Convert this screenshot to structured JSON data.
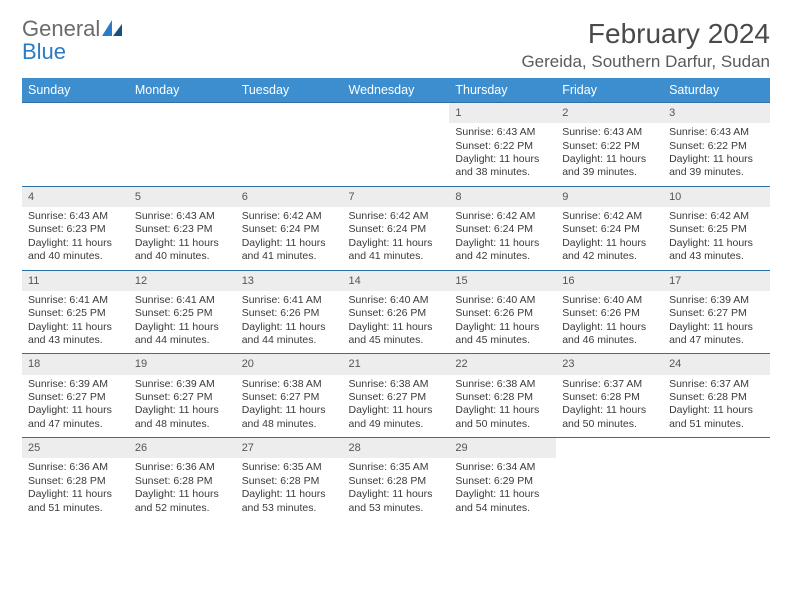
{
  "logo": {
    "general": "General",
    "blue": "Blue"
  },
  "title": "February 2024",
  "location": "Gereida, Southern Darfur, Sudan",
  "dayHeaders": [
    "Sunday",
    "Monday",
    "Tuesday",
    "Wednesday",
    "Thursday",
    "Friday",
    "Saturday"
  ],
  "colors": {
    "headerBg": "#3c8ecf",
    "headerText": "#ffffff",
    "dayNumBg": "#ededed",
    "rowBorder": "#2e6fa8",
    "titleText": "#4a4a4a",
    "bodyText": "#3a3a3a",
    "logoGray": "#6b6b6b",
    "logoBlue": "#2b7cc4"
  },
  "weeks": [
    [
      {
        "empty": true
      },
      {
        "empty": true
      },
      {
        "empty": true
      },
      {
        "empty": true
      },
      {
        "n": "1",
        "sunrise": "Sunrise: 6:43 AM",
        "sunset": "Sunset: 6:22 PM",
        "daylight": "Daylight: 11 hours and 38 minutes."
      },
      {
        "n": "2",
        "sunrise": "Sunrise: 6:43 AM",
        "sunset": "Sunset: 6:22 PM",
        "daylight": "Daylight: 11 hours and 39 minutes."
      },
      {
        "n": "3",
        "sunrise": "Sunrise: 6:43 AM",
        "sunset": "Sunset: 6:22 PM",
        "daylight": "Daylight: 11 hours and 39 minutes."
      }
    ],
    [
      {
        "n": "4",
        "sunrise": "Sunrise: 6:43 AM",
        "sunset": "Sunset: 6:23 PM",
        "daylight": "Daylight: 11 hours and 40 minutes."
      },
      {
        "n": "5",
        "sunrise": "Sunrise: 6:43 AM",
        "sunset": "Sunset: 6:23 PM",
        "daylight": "Daylight: 11 hours and 40 minutes."
      },
      {
        "n": "6",
        "sunrise": "Sunrise: 6:42 AM",
        "sunset": "Sunset: 6:24 PM",
        "daylight": "Daylight: 11 hours and 41 minutes."
      },
      {
        "n": "7",
        "sunrise": "Sunrise: 6:42 AM",
        "sunset": "Sunset: 6:24 PM",
        "daylight": "Daylight: 11 hours and 41 minutes."
      },
      {
        "n": "8",
        "sunrise": "Sunrise: 6:42 AM",
        "sunset": "Sunset: 6:24 PM",
        "daylight": "Daylight: 11 hours and 42 minutes."
      },
      {
        "n": "9",
        "sunrise": "Sunrise: 6:42 AM",
        "sunset": "Sunset: 6:24 PM",
        "daylight": "Daylight: 11 hours and 42 minutes."
      },
      {
        "n": "10",
        "sunrise": "Sunrise: 6:42 AM",
        "sunset": "Sunset: 6:25 PM",
        "daylight": "Daylight: 11 hours and 43 minutes."
      }
    ],
    [
      {
        "n": "11",
        "sunrise": "Sunrise: 6:41 AM",
        "sunset": "Sunset: 6:25 PM",
        "daylight": "Daylight: 11 hours and 43 minutes."
      },
      {
        "n": "12",
        "sunrise": "Sunrise: 6:41 AM",
        "sunset": "Sunset: 6:25 PM",
        "daylight": "Daylight: 11 hours and 44 minutes."
      },
      {
        "n": "13",
        "sunrise": "Sunrise: 6:41 AM",
        "sunset": "Sunset: 6:26 PM",
        "daylight": "Daylight: 11 hours and 44 minutes."
      },
      {
        "n": "14",
        "sunrise": "Sunrise: 6:40 AM",
        "sunset": "Sunset: 6:26 PM",
        "daylight": "Daylight: 11 hours and 45 minutes."
      },
      {
        "n": "15",
        "sunrise": "Sunrise: 6:40 AM",
        "sunset": "Sunset: 6:26 PM",
        "daylight": "Daylight: 11 hours and 45 minutes."
      },
      {
        "n": "16",
        "sunrise": "Sunrise: 6:40 AM",
        "sunset": "Sunset: 6:26 PM",
        "daylight": "Daylight: 11 hours and 46 minutes."
      },
      {
        "n": "17",
        "sunrise": "Sunrise: 6:39 AM",
        "sunset": "Sunset: 6:27 PM",
        "daylight": "Daylight: 11 hours and 47 minutes."
      }
    ],
    [
      {
        "n": "18",
        "sunrise": "Sunrise: 6:39 AM",
        "sunset": "Sunset: 6:27 PM",
        "daylight": "Daylight: 11 hours and 47 minutes."
      },
      {
        "n": "19",
        "sunrise": "Sunrise: 6:39 AM",
        "sunset": "Sunset: 6:27 PM",
        "daylight": "Daylight: 11 hours and 48 minutes."
      },
      {
        "n": "20",
        "sunrise": "Sunrise: 6:38 AM",
        "sunset": "Sunset: 6:27 PM",
        "daylight": "Daylight: 11 hours and 48 minutes."
      },
      {
        "n": "21",
        "sunrise": "Sunrise: 6:38 AM",
        "sunset": "Sunset: 6:27 PM",
        "daylight": "Daylight: 11 hours and 49 minutes."
      },
      {
        "n": "22",
        "sunrise": "Sunrise: 6:38 AM",
        "sunset": "Sunset: 6:28 PM",
        "daylight": "Daylight: 11 hours and 50 minutes."
      },
      {
        "n": "23",
        "sunrise": "Sunrise: 6:37 AM",
        "sunset": "Sunset: 6:28 PM",
        "daylight": "Daylight: 11 hours and 50 minutes."
      },
      {
        "n": "24",
        "sunrise": "Sunrise: 6:37 AM",
        "sunset": "Sunset: 6:28 PM",
        "daylight": "Daylight: 11 hours and 51 minutes."
      }
    ],
    [
      {
        "n": "25",
        "sunrise": "Sunrise: 6:36 AM",
        "sunset": "Sunset: 6:28 PM",
        "daylight": "Daylight: 11 hours and 51 minutes."
      },
      {
        "n": "26",
        "sunrise": "Sunrise: 6:36 AM",
        "sunset": "Sunset: 6:28 PM",
        "daylight": "Daylight: 11 hours and 52 minutes."
      },
      {
        "n": "27",
        "sunrise": "Sunrise: 6:35 AM",
        "sunset": "Sunset: 6:28 PM",
        "daylight": "Daylight: 11 hours and 53 minutes."
      },
      {
        "n": "28",
        "sunrise": "Sunrise: 6:35 AM",
        "sunset": "Sunset: 6:28 PM",
        "daylight": "Daylight: 11 hours and 53 minutes."
      },
      {
        "n": "29",
        "sunrise": "Sunrise: 6:34 AM",
        "sunset": "Sunset: 6:29 PM",
        "daylight": "Daylight: 11 hours and 54 minutes."
      },
      {
        "empty": true
      },
      {
        "empty": true
      }
    ]
  ]
}
